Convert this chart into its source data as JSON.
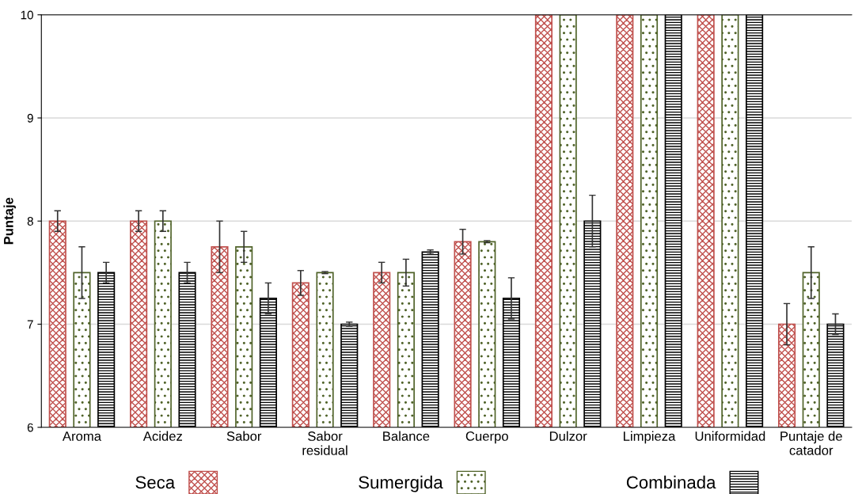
{
  "chart_data": {
    "type": "bar",
    "ylabel": "Puntaje",
    "categories": [
      "Aroma",
      "Acidez",
      "Sabor",
      "Sabor\nresidual",
      "Balance",
      "Cuerpo",
      "Dulzor",
      "Limpieza",
      "Uniformidad",
      "Puntaje de\ncatador"
    ],
    "series": [
      {
        "name": "Seca",
        "color": "#c0504d",
        "values": [
          8,
          8,
          7.75,
          7.4,
          7.5,
          7.8,
          10,
          10,
          10,
          7.0
        ],
        "errors": [
          0.1,
          0.1,
          0.25,
          0.12,
          0.1,
          0.12,
          null,
          null,
          null,
          0.2
        ]
      },
      {
        "name": "Sumergida",
        "color": "#4f6228",
        "values": [
          7.5,
          8,
          7.75,
          7.5,
          7.5,
          7.8,
          10,
          10,
          10,
          7.5
        ],
        "errors": [
          0.25,
          0.1,
          0.15,
          0.01,
          0.13,
          0.01,
          null,
          null,
          null,
          0.25
        ]
      },
      {
        "name": "Combinada",
        "color": "#000000",
        "values": [
          7.5,
          7.5,
          7.25,
          7.0,
          7.7,
          7.25,
          8,
          10,
          10,
          7.0
        ],
        "errors": [
          0.1,
          0.1,
          0.15,
          0.02,
          0.02,
          0.2,
          0.25,
          null,
          null,
          0.1
        ]
      }
    ],
    "ylim": [
      6,
      10
    ],
    "yticks": [
      6,
      7,
      8,
      9,
      10
    ],
    "grid": "y",
    "legend": "bottom"
  }
}
